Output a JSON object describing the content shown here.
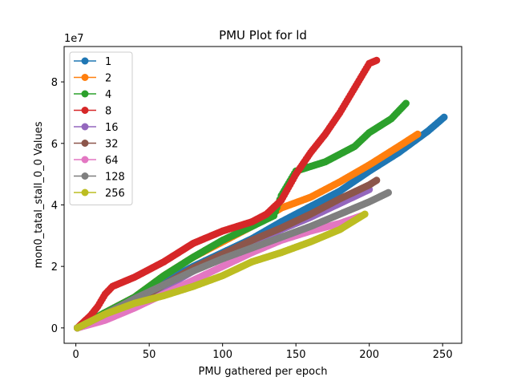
{
  "chart_data": {
    "type": "line",
    "title": "PMU Plot for ld",
    "xlabel": "PMU gathered per epoch",
    "ylabel": "mon0_tatal_stall_0_0 Values",
    "y_offset_text": "1e7",
    "xlim": [
      -8,
      263
    ],
    "ylim": [
      -5000000,
      91500000
    ],
    "xticks": [
      0,
      50,
      100,
      150,
      200,
      250
    ],
    "yticks": [
      0,
      20000000,
      40000000,
      60000000,
      80000000
    ],
    "ytick_labels": [
      "0",
      "2",
      "4",
      "6",
      "8"
    ],
    "marker": "circle",
    "grid": false,
    "legend_position": "upper left",
    "series": [
      {
        "name": "1",
        "color": "#1f77b4",
        "x": [
          1,
          20,
          40,
          60,
          80,
          100,
          120,
          140,
          160,
          180,
          200,
          220,
          240,
          251
        ],
        "y": [
          0,
          4500000,
          9500000,
          15000000,
          20000000,
          24500000,
          29000000,
          34500000,
          39500000,
          44500000,
          51000000,
          57000000,
          64000000,
          68500000
        ]
      },
      {
        "name": "2",
        "color": "#ff7f0e",
        "x": [
          1,
          20,
          40,
          60,
          80,
          100,
          120,
          140,
          160,
          180,
          200,
          220,
          233
        ],
        "y": [
          0,
          5000000,
          10000000,
          17000000,
          23000000,
          28000000,
          33000000,
          39000000,
          42500000,
          47500000,
          53000000,
          59000000,
          63000000
        ]
      },
      {
        "name": "4",
        "color": "#2ca02c",
        "x": [
          1,
          20,
          40,
          60,
          80,
          100,
          120,
          135,
          140,
          150,
          170,
          190,
          200,
          215,
          225
        ],
        "y": [
          0,
          5000000,
          10000000,
          17000000,
          23000000,
          28500000,
          33000000,
          36500000,
          43000000,
          51000000,
          54000000,
          59000000,
          63500000,
          68000000,
          73000000
        ]
      },
      {
        "name": "8",
        "color": "#d62728",
        "x": [
          1,
          10,
          15,
          20,
          25,
          30,
          40,
          60,
          80,
          100,
          120,
          130,
          140,
          150,
          160,
          170,
          180,
          190,
          200,
          205
        ],
        "y": [
          0,
          4000000,
          7000000,
          11000000,
          13500000,
          14500000,
          16500000,
          21500000,
          27500000,
          31500000,
          34500000,
          37000000,
          41500000,
          50000000,
          57000000,
          63000000,
          70000000,
          78000000,
          86000000,
          87000000
        ]
      },
      {
        "name": "16",
        "color": "#9467bd",
        "x": [
          1,
          20,
          40,
          60,
          80,
          100,
          120,
          140,
          160,
          180,
          200
        ],
        "y": [
          0,
          3000000,
          8000000,
          13000000,
          18500000,
          23000000,
          27500000,
          32000000,
          36000000,
          40500000,
          45000000
        ]
      },
      {
        "name": "32",
        "color": "#8c564b",
        "x": [
          1,
          20,
          40,
          60,
          80,
          100,
          120,
          140,
          160,
          180,
          200,
          205
        ],
        "y": [
          0,
          3500000,
          8500000,
          14000000,
          19500000,
          24000000,
          28500000,
          32500000,
          37000000,
          42000000,
          46500000,
          48000000
        ]
      },
      {
        "name": "64",
        "color": "#e377c2",
        "x": [
          1,
          20,
          40,
          60,
          80,
          100,
          120,
          140,
          160,
          180,
          195
        ],
        "y": [
          0,
          2500000,
          6500000,
          11000000,
          15500000,
          20000000,
          24500000,
          28500000,
          31500000,
          34000000,
          36500000
        ]
      },
      {
        "name": "128",
        "color": "#7f7f7f",
        "x": [
          1,
          20,
          40,
          60,
          80,
          100,
          120,
          140,
          160,
          180,
          200,
          213
        ],
        "y": [
          0,
          4500000,
          9500000,
          14000000,
          18500000,
          22500000,
          26000000,
          29500000,
          33000000,
          37000000,
          41000000,
          44000000
        ]
      },
      {
        "name": "256",
        "color": "#bcbd22",
        "x": [
          1,
          20,
          40,
          60,
          80,
          100,
          120,
          140,
          160,
          180,
          197
        ],
        "y": [
          0,
          4500000,
          8000000,
          10500000,
          13500000,
          17000000,
          21500000,
          24500000,
          28000000,
          32000000,
          37000000
        ]
      }
    ]
  }
}
